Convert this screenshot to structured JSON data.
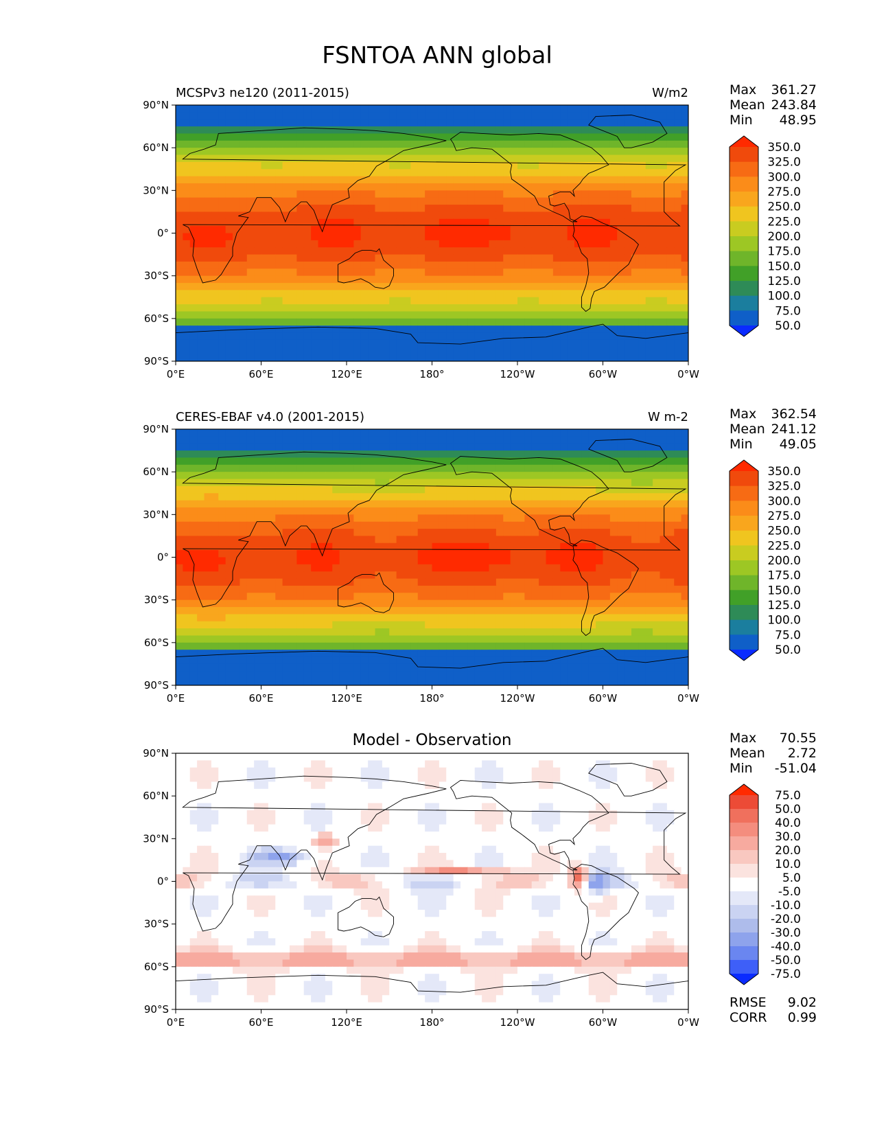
{
  "title": "FSNTOA ANN global",
  "stat_labels": {
    "max": "Max",
    "mean": "Mean",
    "min": "Min",
    "rmse": "RMSE",
    "corr": "CORR"
  },
  "axis": {
    "yticks": [
      "90°N",
      "60°N",
      "30°N",
      "0°",
      "30°S",
      "60°S",
      "90°S"
    ],
    "xticks": [
      "0°E",
      "60°E",
      "120°E",
      "180°",
      "120°W",
      "60°W",
      "0°W"
    ]
  },
  "colors": {
    "abs_levels": [
      "#0a2bff",
      "#0f5fc8",
      "#1b7e9e",
      "#2e8b57",
      "#41a028",
      "#6fb52a",
      "#9dc724",
      "#c9cc20",
      "#f0c51f",
      "#f9a61d",
      "#fb8c19",
      "#f76b14",
      "#f04a0c",
      "#ff2a00"
    ],
    "diff_levels": [
      "#0a2bff",
      "#3e5ff8",
      "#6a86f0",
      "#8ea3ec",
      "#aebceb",
      "#cad3f2",
      "#e4e8f8",
      "#ffffff",
      "#fbe3df",
      "#f9c8c0",
      "#f7aa9f",
      "#f48d7e",
      "#f0705d",
      "#ec4b36",
      "#ff2a00"
    ],
    "land_outline": "#000000"
  },
  "chart_data": [
    {
      "type": "heatmap",
      "panel": "test",
      "subtitle": "MCSPv3 ne120 (2011-2015)",
      "units": "W/m2",
      "stats": {
        "max": "361.27",
        "mean": "243.84",
        "min": "48.95"
      },
      "colorbar_levels": [
        "350.0",
        "325.0",
        "300.0",
        "275.0",
        "250.0",
        "225.0",
        "200.0",
        "175.0",
        "150.0",
        "125.0",
        "100.0",
        "75.0",
        "50.0"
      ],
      "xlim": [
        0,
        360
      ],
      "ylim": [
        -90,
        90
      ]
    },
    {
      "type": "heatmap",
      "panel": "reference",
      "subtitle": "CERES-EBAF v4.0 (2001-2015)",
      "units": "W m-2",
      "stats": {
        "max": "362.54",
        "mean": "241.12",
        "min": "49.05"
      },
      "colorbar_levels": [
        "350.0",
        "325.0",
        "300.0",
        "275.0",
        "250.0",
        "225.0",
        "200.0",
        "175.0",
        "150.0",
        "125.0",
        "100.0",
        "75.0",
        "50.0"
      ],
      "xlim": [
        0,
        360
      ],
      "ylim": [
        -90,
        90
      ]
    },
    {
      "type": "heatmap",
      "panel": "difference",
      "subtitle": "Model - Observation",
      "units": "",
      "stats": {
        "max": "70.55",
        "mean": "2.72",
        "min": "-51.04",
        "rmse": "9.02",
        "corr": "0.99"
      },
      "colorbar_levels": [
        "75.0",
        "50.0",
        "40.0",
        "30.0",
        "20.0",
        "10.0",
        "5.0",
        "-5.0",
        "-10.0",
        "-20.0",
        "-30.0",
        "-40.0",
        "-50.0",
        "-75.0"
      ],
      "xlim": [
        0,
        360
      ],
      "ylim": [
        -90,
        90
      ]
    }
  ]
}
